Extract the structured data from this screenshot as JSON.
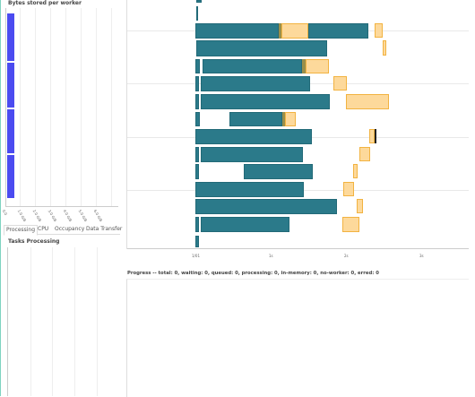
{
  "bytes_panel": {
    "title": "Bytes stored per worker"
  },
  "bytes_axis_ticks": [
    "0.0",
    "1.0 GiB",
    "2.0 GiB",
    "3.0 GiB",
    "4.0 GiB",
    "5.0 GiB",
    "6.0 GiB"
  ],
  "tabs": [
    {
      "label": "Processing",
      "active": true
    },
    {
      "label": "CPU",
      "active": false
    },
    {
      "label": "Occupancy",
      "active": false
    },
    {
      "label": "Data Transfer",
      "active": false
    }
  ],
  "processing_panel": {
    "title": "Tasks Processing"
  },
  "task_stream": {
    "x_ticks": [
      "1/01",
      "1s",
      "2s",
      "3s"
    ]
  },
  "progress": {
    "text": "Progress -- total: 0, waiting: 0, queued: 0, processing: 0, in-memory: 0, no-worker: 0, erred: 0"
  },
  "colors": {
    "compute": "#2b7a8a",
    "transfer": "#fdd99b",
    "worker_bar": "#4b4bf0",
    "olive": "#9a8f4a"
  }
}
